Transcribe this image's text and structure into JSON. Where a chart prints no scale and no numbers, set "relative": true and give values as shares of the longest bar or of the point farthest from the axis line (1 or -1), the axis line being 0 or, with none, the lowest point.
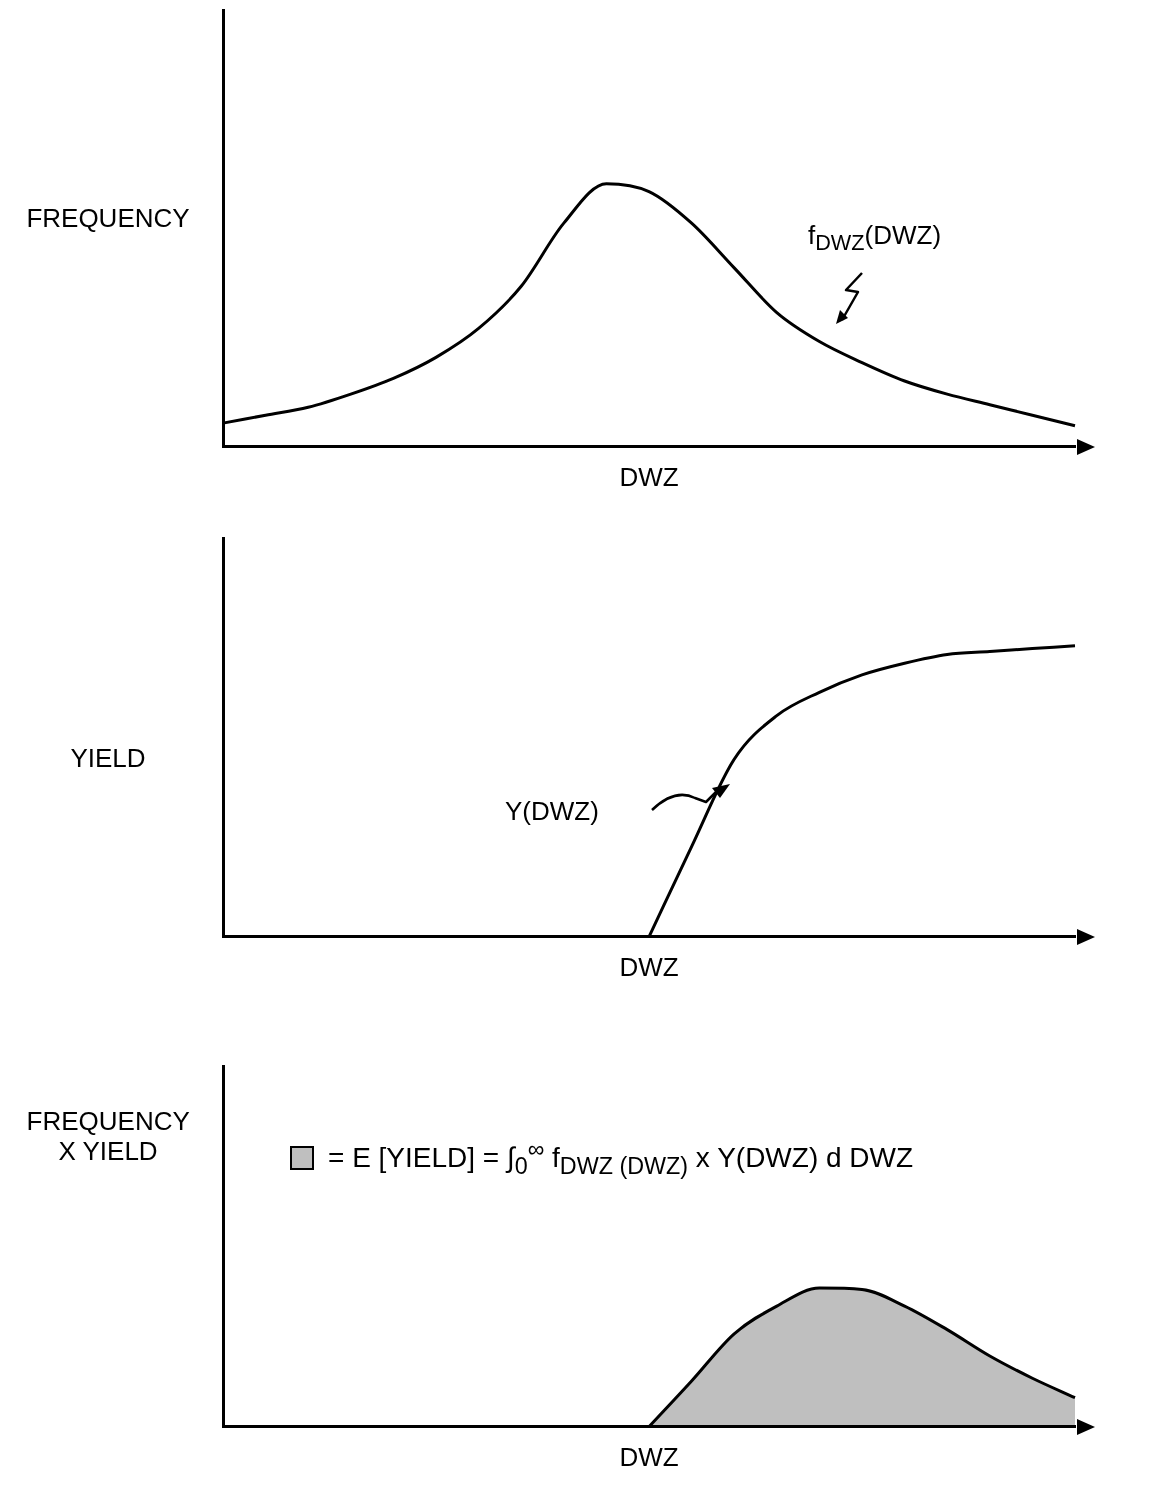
{
  "chart_data": [
    {
      "type": "line",
      "relative": true,
      "ylabel": "FREQUENCY",
      "xlabel": "DWZ",
      "annotations": [
        "f$_{DWZ}$(DWZ)"
      ],
      "categories": [
        null,
        null,
        null,
        null,
        null,
        null,
        null,
        null,
        null,
        null,
        null,
        null,
        null,
        null,
        null,
        null,
        null,
        null,
        null,
        null,
        null
      ],
      "series": [
        {
          "color": "#000000",
          "values": [
            0.09,
            0.12,
            0.15,
            0.2,
            0.26,
            0.34,
            0.45,
            0.61,
            0.85,
            1.0,
            0.97,
            0.85,
            0.68,
            0.51,
            0.4,
            0.32,
            0.25,
            0.2,
            0.16,
            0.12,
            0.08
          ]
        }
      ]
    },
    {
      "type": "line",
      "relative": true,
      "ylabel": "YIELD",
      "xlabel": "DWZ",
      "annotations": [
        "Y(DWZ)"
      ],
      "categories": [
        null,
        null,
        null,
        null,
        null,
        null,
        null,
        null,
        null,
        null,
        null,
        null,
        null,
        null,
        null,
        null,
        null,
        null,
        null,
        null,
        null
      ],
      "series": [
        {
          "color": "#000000",
          "values": [
            null,
            null,
            null,
            null,
            null,
            null,
            null,
            null,
            null,
            null,
            0,
            0.31,
            0.61,
            0.76,
            0.84,
            0.9,
            0.94,
            0.97,
            0.98,
            0.99,
            1.0
          ]
        }
      ]
    },
    {
      "type": "area",
      "relative": true,
      "ylabel": "FREQUENCY X YIELD",
      "xlabel": "DWZ",
      "annotations": [
        "= E [YIELD] = ∫$_{0}$$^{∞}$ f$_{DWZ (DWZ)}$ x Y(DWZ) d DWZ"
      ],
      "categories": [
        null,
        null,
        null,
        null,
        null,
        null,
        null,
        null,
        null,
        null,
        null,
        null,
        null,
        null,
        null,
        null,
        null,
        null,
        null,
        null,
        null
      ],
      "series": [
        {
          "color": "#000000",
          "values": [
            null,
            null,
            null,
            null,
            null,
            null,
            null,
            null,
            null,
            null,
            0,
            0.33,
            0.67,
            0.87,
            1.0,
            0.99,
            0.87,
            0.7,
            0.51,
            0.35,
            0.21
          ]
        }
      ]
    }
  ]
}
